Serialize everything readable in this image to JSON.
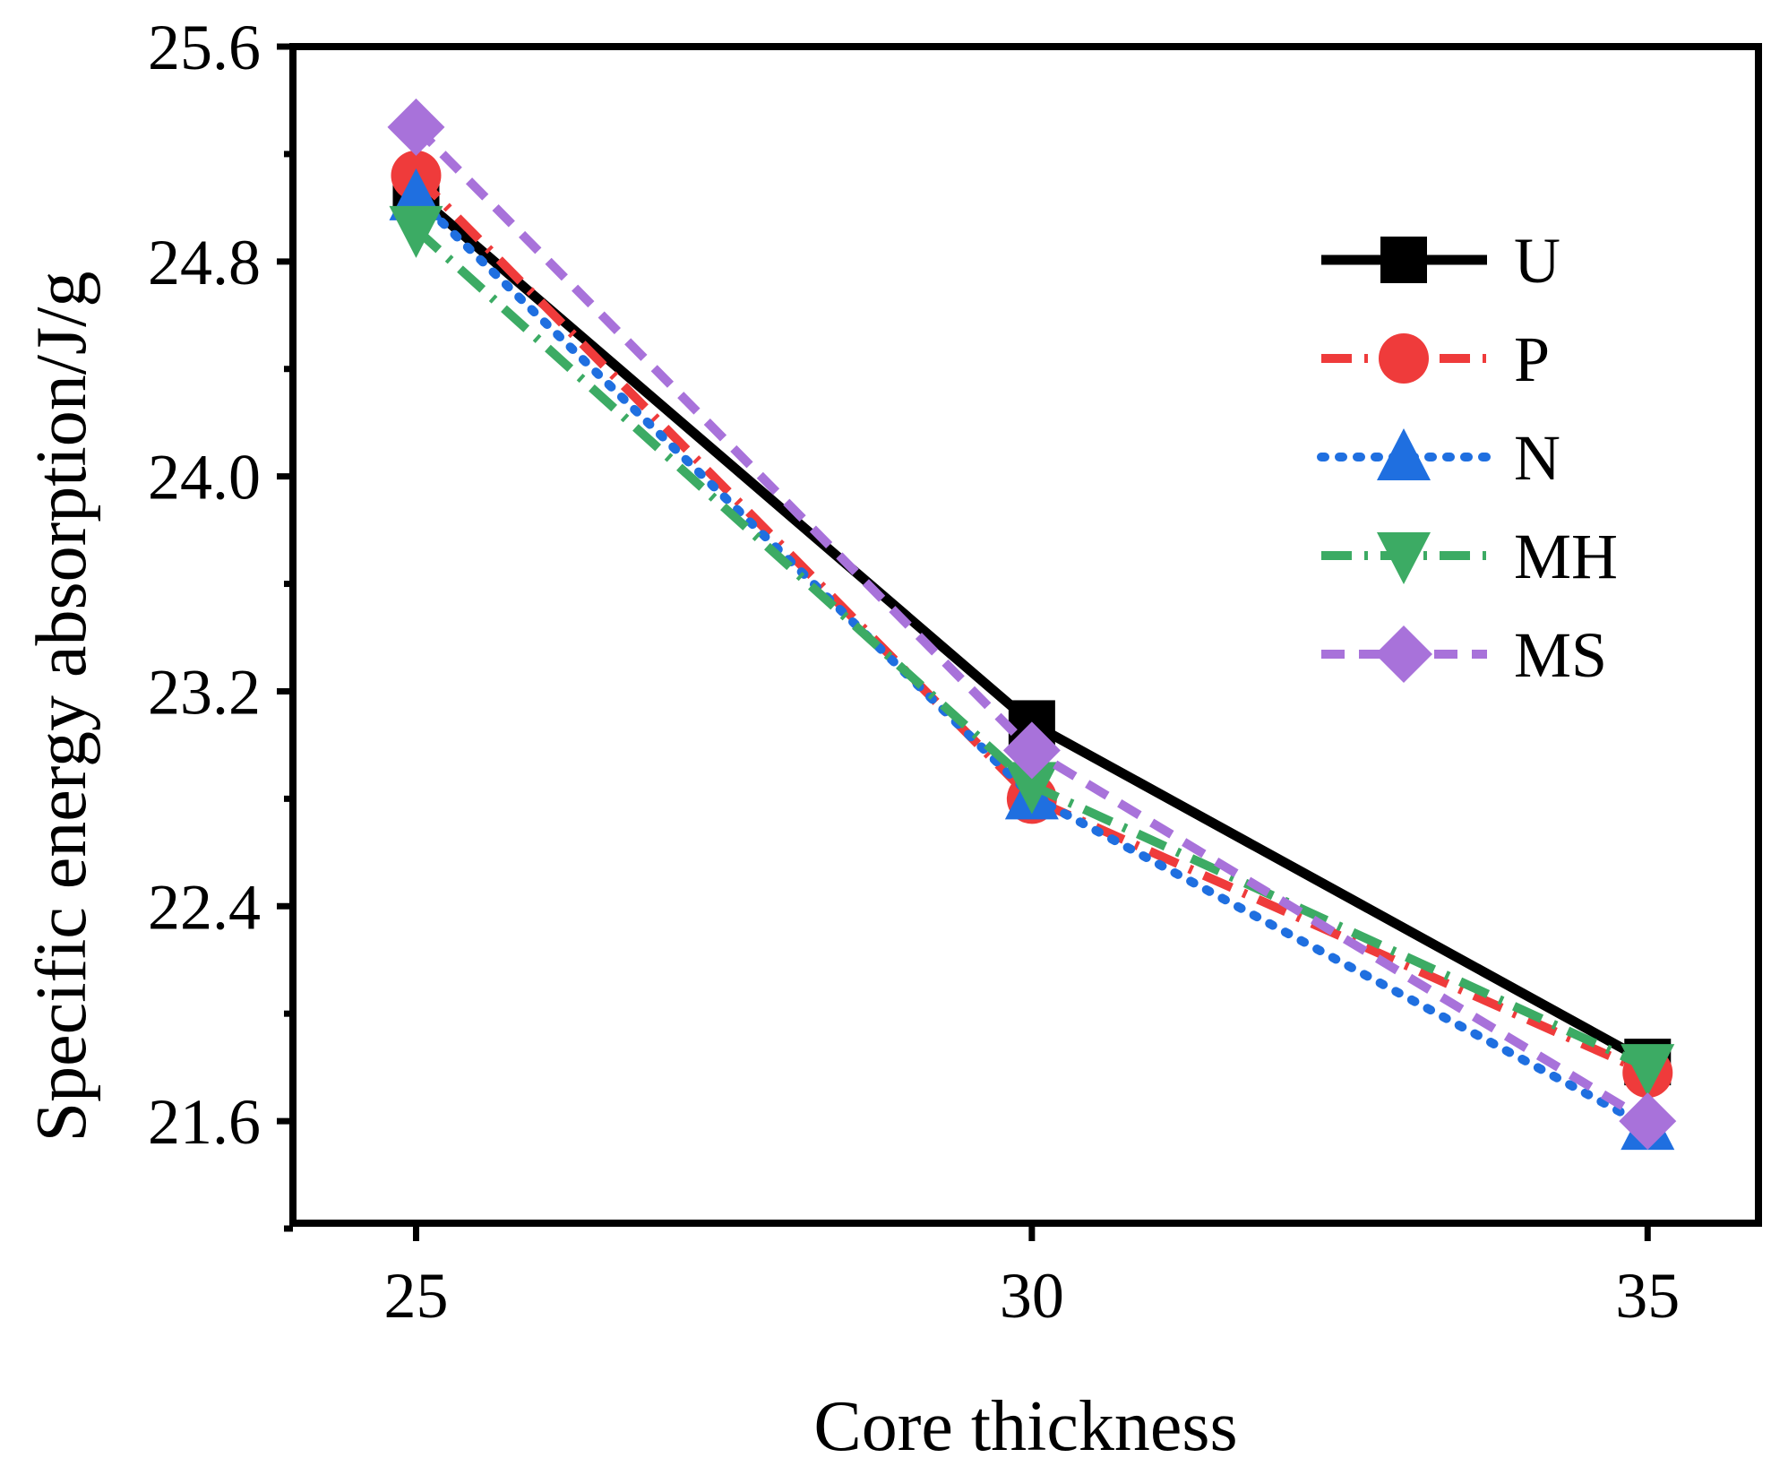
{
  "chart_data": {
    "type": "line",
    "title": "",
    "xlabel": "Core thickness",
    "ylabel": "Specific energy absorption/J/g",
    "x": [
      25,
      30,
      35
    ],
    "xlim": [
      24,
      35.9
    ],
    "ylim": [
      21.22,
      25.6
    ],
    "x_ticks": [
      25,
      30,
      35
    ],
    "x_tick_labels": [
      "25",
      "30",
      "35"
    ],
    "y_ticks": [
      21.6,
      22.4,
      23.2,
      24.0,
      24.8,
      25.6
    ],
    "y_tick_labels": [
      "21.6",
      "22.4",
      "23.2",
      "24.0",
      "24.8",
      "25.6"
    ],
    "y_minor_ticks": [
      21.2,
      22.0,
      22.8,
      23.6,
      24.4,
      25.2
    ],
    "grid": false,
    "legend_position": "top-right",
    "series": [
      {
        "name": "U",
        "values": [
          25.05,
          23.08,
          21.82
        ],
        "color": "#000000",
        "marker": "square",
        "line": "solid"
      },
      {
        "name": "P",
        "values": [
          25.12,
          22.8,
          21.78
        ],
        "color": "#ef3b3b",
        "marker": "circle",
        "line": "dash-dot"
      },
      {
        "name": "N",
        "values": [
          25.04,
          22.81,
          21.58
        ],
        "color": "#1f6fe0",
        "marker": "triangle-up",
        "line": "dot"
      },
      {
        "name": "MH",
        "values": [
          24.92,
          22.85,
          21.8
        ],
        "color": "#3cab64",
        "marker": "triangle-down",
        "line": "dash-dot"
      },
      {
        "name": "MS",
        "values": [
          25.3,
          22.98,
          21.6
        ],
        "color": "#a872da",
        "marker": "diamond",
        "line": "dash"
      }
    ]
  }
}
